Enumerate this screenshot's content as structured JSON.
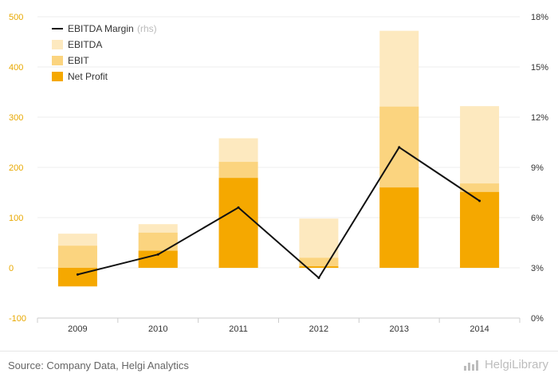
{
  "colors": {
    "ebitda": "#fde9bf",
    "ebit": "#fbd47f",
    "net_profit": "#f5a800",
    "margin_line": "#111111",
    "left_ticks": "#e8a800",
    "grid": "#eeeeee"
  },
  "legend": {
    "margin_label": "EBITDA Margin",
    "margin_suffix": "(rhs)",
    "ebitda_label": "EBITDA",
    "ebit_label": "EBIT",
    "net_profit_label": "Net Profit"
  },
  "footer": {
    "source": "Source: Company Data, Helgi Analytics",
    "brand": "HelgiLibrary",
    "brand_icon": "bar-chart-logo-icon"
  },
  "chart_data": {
    "type": "bar",
    "categories": [
      "2009",
      "2010",
      "2011",
      "2012",
      "2013",
      "2014"
    ],
    "series": [
      {
        "name": "EBITDA",
        "values": [
          68,
          87,
          258,
          98,
          472,
          322
        ]
      },
      {
        "name": "EBIT",
        "values": [
          44,
          70,
          211,
          20,
          321,
          168
        ]
      },
      {
        "name": "Net Profit",
        "values": [
          -37,
          34,
          179,
          3,
          160,
          151
        ]
      },
      {
        "name": "EBITDA Margin",
        "type": "line",
        "axis": "right",
        "values": [
          2.6,
          3.8,
          6.6,
          2.4,
          10.2,
          7.0
        ]
      }
    ],
    "y_left": {
      "min": -100,
      "max": 500,
      "ticks": [
        -100,
        0,
        100,
        200,
        300,
        400,
        500
      ]
    },
    "y_right": {
      "min": 0,
      "max": 18,
      "ticks": [
        "0%",
        "3%",
        "6%",
        "9%",
        "12%",
        "15%",
        "18%"
      ],
      "tick_values": [
        0,
        3,
        6,
        9,
        12,
        15,
        18
      ]
    },
    "legend_position": "top-left"
  }
}
